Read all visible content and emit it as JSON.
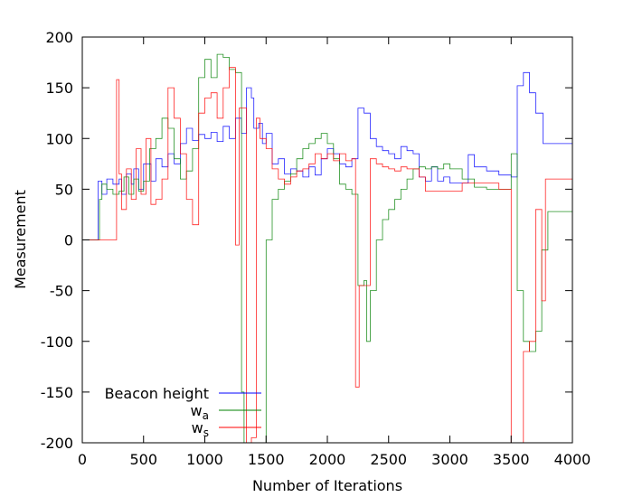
{
  "chart_data": {
    "type": "line",
    "title": "",
    "xlabel": "Number of Iterations",
    "ylabel": "Measurement",
    "xlim": [
      0,
      4000
    ],
    "ylim": [
      -200,
      200
    ],
    "xticks": [
      0,
      500,
      1000,
      1500,
      2000,
      2500,
      3000,
      3500,
      4000
    ],
    "yticks": [
      -200,
      -150,
      -100,
      -50,
      0,
      50,
      100,
      150,
      200
    ],
    "grid": false,
    "legend_position": "bottom-left",
    "series": [
      {
        "name": "Beacon height",
        "subscript": "",
        "color": "#0000ff",
        "points": [
          [
            0,
            0
          ],
          [
            130,
            0
          ],
          [
            130,
            58
          ],
          [
            160,
            45
          ],
          [
            200,
            60
          ],
          [
            250,
            55
          ],
          [
            300,
            60
          ],
          [
            320,
            45
          ],
          [
            360,
            65
          ],
          [
            400,
            55
          ],
          [
            420,
            70
          ],
          [
            460,
            50
          ],
          [
            500,
            75
          ],
          [
            560,
            58
          ],
          [
            600,
            80
          ],
          [
            650,
            72
          ],
          [
            700,
            85
          ],
          [
            750,
            75
          ],
          [
            800,
            95
          ],
          [
            850,
            110
          ],
          [
            900,
            98
          ],
          [
            950,
            104
          ],
          [
            1000,
            100
          ],
          [
            1050,
            106
          ],
          [
            1100,
            97
          ],
          [
            1150,
            112
          ],
          [
            1200,
            100
          ],
          [
            1250,
            120
          ],
          [
            1300,
            105
          ],
          [
            1340,
            150
          ],
          [
            1380,
            140
          ],
          [
            1400,
            110
          ],
          [
            1440,
            115
          ],
          [
            1470,
            95
          ],
          [
            1500,
            105
          ],
          [
            1550,
            75
          ],
          [
            1600,
            80
          ],
          [
            1650,
            65
          ],
          [
            1700,
            70
          ],
          [
            1750,
            68
          ],
          [
            1800,
            62
          ],
          [
            1850,
            72
          ],
          [
            1900,
            64
          ],
          [
            1950,
            80
          ],
          [
            2000,
            90
          ],
          [
            2050,
            85
          ],
          [
            2100,
            75
          ],
          [
            2150,
            72
          ],
          [
            2200,
            80
          ],
          [
            2250,
            130
          ],
          [
            2300,
            125
          ],
          [
            2350,
            100
          ],
          [
            2400,
            92
          ],
          [
            2450,
            88
          ],
          [
            2500,
            85
          ],
          [
            2550,
            80
          ],
          [
            2600,
            92
          ],
          [
            2650,
            88
          ],
          [
            2700,
            85
          ],
          [
            2750,
            62
          ],
          [
            2800,
            58
          ],
          [
            2850,
            72
          ],
          [
            2900,
            58
          ],
          [
            2950,
            62
          ],
          [
            3000,
            56
          ],
          [
            3100,
            56
          ],
          [
            3150,
            84
          ],
          [
            3200,
            72
          ],
          [
            3300,
            68
          ],
          [
            3400,
            64
          ],
          [
            3500,
            62
          ],
          [
            3550,
            152
          ],
          [
            3600,
            165
          ],
          [
            3650,
            145
          ],
          [
            3700,
            125
          ],
          [
            3760,
            95
          ],
          [
            4000,
            94
          ]
        ]
      },
      {
        "name": "w",
        "subscript": "a",
        "color": "#008000",
        "points": [
          [
            0,
            0
          ],
          [
            130,
            0
          ],
          [
            140,
            40
          ],
          [
            160,
            55
          ],
          [
            200,
            50
          ],
          [
            250,
            45
          ],
          [
            300,
            48
          ],
          [
            340,
            62
          ],
          [
            380,
            45
          ],
          [
            420,
            60
          ],
          [
            460,
            48
          ],
          [
            500,
            58
          ],
          [
            550,
            90
          ],
          [
            600,
            100
          ],
          [
            650,
            120
          ],
          [
            700,
            110
          ],
          [
            750,
            80
          ],
          [
            800,
            60
          ],
          [
            850,
            68
          ],
          [
            900,
            90
          ],
          [
            950,
            160
          ],
          [
            1000,
            178
          ],
          [
            1050,
            160
          ],
          [
            1100,
            183
          ],
          [
            1150,
            180
          ],
          [
            1200,
            168
          ],
          [
            1250,
            165
          ],
          [
            1280,
            165
          ],
          [
            1300,
            -150
          ],
          [
            1320,
            -200
          ],
          [
            1400,
            -200
          ],
          [
            1450,
            -200
          ],
          [
            1480,
            -200
          ],
          [
            1500,
            0
          ],
          [
            1550,
            40
          ],
          [
            1600,
            50
          ],
          [
            1650,
            58
          ],
          [
            1700,
            65
          ],
          [
            1750,
            80
          ],
          [
            1800,
            90
          ],
          [
            1850,
            95
          ],
          [
            1900,
            100
          ],
          [
            1950,
            105
          ],
          [
            2000,
            95
          ],
          [
            2050,
            80
          ],
          [
            2100,
            55
          ],
          [
            2150,
            50
          ],
          [
            2200,
            45
          ],
          [
            2250,
            -45
          ],
          [
            2300,
            -40
          ],
          [
            2320,
            -100
          ],
          [
            2350,
            -50
          ],
          [
            2400,
            0
          ],
          [
            2450,
            20
          ],
          [
            2500,
            30
          ],
          [
            2550,
            40
          ],
          [
            2600,
            50
          ],
          [
            2650,
            60
          ],
          [
            2700,
            70
          ],
          [
            2750,
            72
          ],
          [
            2800,
            70
          ],
          [
            2850,
            72
          ],
          [
            2900,
            70
          ],
          [
            2950,
            75
          ],
          [
            3000,
            70
          ],
          [
            3100,
            60
          ],
          [
            3200,
            52
          ],
          [
            3300,
            50
          ],
          [
            3400,
            50
          ],
          [
            3500,
            85
          ],
          [
            3550,
            -50
          ],
          [
            3600,
            -100
          ],
          [
            3650,
            -110
          ],
          [
            3700,
            -90
          ],
          [
            3750,
            -10
          ],
          [
            3800,
            28
          ],
          [
            4000,
            28
          ]
        ]
      },
      {
        "name": "w",
        "subscript": "s",
        "color": "#ff0000",
        "points": [
          [
            0,
            0
          ],
          [
            260,
            0
          ],
          [
            280,
            158
          ],
          [
            300,
            65
          ],
          [
            320,
            30
          ],
          [
            360,
            70
          ],
          [
            400,
            40
          ],
          [
            440,
            90
          ],
          [
            480,
            45
          ],
          [
            520,
            100
          ],
          [
            560,
            35
          ],
          [
            600,
            40
          ],
          [
            650,
            60
          ],
          [
            700,
            150
          ],
          [
            750,
            120
          ],
          [
            800,
            85
          ],
          [
            850,
            40
          ],
          [
            900,
            15
          ],
          [
            950,
            125
          ],
          [
            1000,
            140
          ],
          [
            1050,
            145
          ],
          [
            1100,
            120
          ],
          [
            1150,
            150
          ],
          [
            1200,
            170
          ],
          [
            1250,
            -5
          ],
          [
            1280,
            130
          ],
          [
            1300,
            130
          ],
          [
            1340,
            -200
          ],
          [
            1380,
            -195
          ],
          [
            1420,
            120
          ],
          [
            1450,
            100
          ],
          [
            1500,
            90
          ],
          [
            1550,
            70
          ],
          [
            1600,
            60
          ],
          [
            1650,
            55
          ],
          [
            1700,
            62
          ],
          [
            1750,
            68
          ],
          [
            1800,
            70
          ],
          [
            1850,
            75
          ],
          [
            1900,
            85
          ],
          [
            1950,
            80
          ],
          [
            2000,
            85
          ],
          [
            2050,
            78
          ],
          [
            2100,
            85
          ],
          [
            2150,
            78
          ],
          [
            2200,
            80
          ],
          [
            2230,
            -145
          ],
          [
            2260,
            -45
          ],
          [
            2300,
            -45
          ],
          [
            2350,
            80
          ],
          [
            2400,
            75
          ],
          [
            2450,
            72
          ],
          [
            2500,
            70
          ],
          [
            2550,
            68
          ],
          [
            2600,
            72
          ],
          [
            2650,
            70
          ],
          [
            2700,
            70
          ],
          [
            2750,
            62
          ],
          [
            2800,
            48
          ],
          [
            2900,
            48
          ],
          [
            3000,
            48
          ],
          [
            3100,
            56
          ],
          [
            3200,
            56
          ],
          [
            3300,
            56
          ],
          [
            3400,
            50
          ],
          [
            3450,
            50
          ],
          [
            3500,
            -200
          ],
          [
            3550,
            -200
          ],
          [
            3600,
            -110
          ],
          [
            3650,
            -100
          ],
          [
            3700,
            30
          ],
          [
            3750,
            -60
          ],
          [
            3780,
            60
          ],
          [
            4000,
            62
          ]
        ]
      }
    ]
  }
}
